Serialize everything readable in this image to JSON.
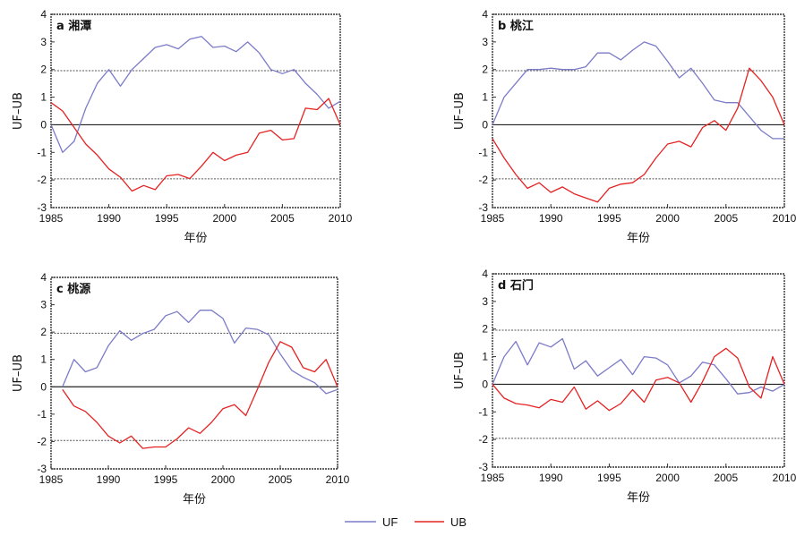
{
  "legend": [
    {
      "name": "UF",
      "color": "#7b7bc8"
    },
    {
      "name": "UB",
      "color": "#e52222"
    }
  ],
  "chart_data": [
    {
      "type": "line",
      "title": "a 湘潭",
      "xlabel": "年份",
      "ylabel": "UF–UB",
      "xlim": [
        1985,
        2010
      ],
      "ylim": [
        -3,
        4
      ],
      "xticks": [
        1985,
        1990,
        1995,
        2000,
        2005,
        2010
      ],
      "yticks": [
        -3,
        -2,
        -1,
        0,
        1,
        2,
        3,
        4
      ],
      "reference_lines": [
        1.96,
        0,
        -1.96
      ],
      "x": [
        1985,
        1986,
        1987,
        1988,
        1989,
        1990,
        1991,
        1992,
        1993,
        1994,
        1995,
        1996,
        1997,
        1998,
        1999,
        2000,
        2001,
        2002,
        2003,
        2004,
        2005,
        2006,
        2007,
        2008,
        2009,
        2010
      ],
      "series": [
        {
          "name": "UF",
          "color": "#7b7bc8",
          "values": [
            0,
            -1.0,
            -0.6,
            0.6,
            1.5,
            2.0,
            1.4,
            2.0,
            2.4,
            2.8,
            2.9,
            2.75,
            3.1,
            3.2,
            2.8,
            2.85,
            2.65,
            3.0,
            2.6,
            2.0,
            1.85,
            2.0,
            1.5,
            1.1,
            0.6,
            0.85
          ]
        },
        {
          "name": "UB",
          "color": "#e52222",
          "values": [
            0.8,
            0.5,
            -0.1,
            -0.7,
            -1.1,
            -1.6,
            -1.9,
            -2.4,
            -2.2,
            -2.35,
            -1.85,
            -1.8,
            -1.95,
            -1.5,
            -1.0,
            -1.3,
            -1.1,
            -1.0,
            -0.3,
            -0.2,
            -0.55,
            -0.5,
            0.6,
            0.55,
            0.95,
            0
          ]
        }
      ]
    },
    {
      "type": "line",
      "title": "b 桃江",
      "xlabel": "年份",
      "ylabel": "UF–UB",
      "xlim": [
        1985,
        2010
      ],
      "ylim": [
        -3,
        4
      ],
      "xticks": [
        1985,
        1990,
        1995,
        2000,
        2005,
        2010
      ],
      "yticks": [
        -3,
        -2,
        -1,
        0,
        1,
        2,
        3,
        4
      ],
      "reference_lines": [
        1.96,
        0,
        -1.96
      ],
      "x": [
        1985,
        1986,
        1987,
        1988,
        1989,
        1990,
        1991,
        1992,
        1993,
        1994,
        1995,
        1996,
        1997,
        1998,
        1999,
        2000,
        2001,
        2002,
        2003,
        2004,
        2005,
        2006,
        2007,
        2008,
        2009,
        2010
      ],
      "series": [
        {
          "name": "UF",
          "color": "#7b7bc8",
          "values": [
            0,
            1.0,
            1.5,
            2.0,
            2.0,
            2.05,
            2.0,
            2.0,
            2.1,
            2.6,
            2.6,
            2.35,
            2.7,
            3.0,
            2.85,
            2.3,
            1.7,
            2.05,
            1.5,
            0.9,
            0.8,
            0.8,
            0.3,
            -0.2,
            -0.5,
            -0.5
          ]
        },
        {
          "name": "UB",
          "color": "#e52222",
          "values": [
            -0.5,
            -1.2,
            -1.8,
            -2.3,
            -2.1,
            -2.45,
            -2.25,
            -2.5,
            -2.65,
            -2.8,
            -2.3,
            -2.15,
            -2.1,
            -1.8,
            -1.2,
            -0.7,
            -0.6,
            -0.8,
            -0.1,
            0.15,
            -0.2,
            0.6,
            2.05,
            1.6,
            1.0,
            0
          ]
        }
      ]
    },
    {
      "type": "line",
      "title": "c 桃源",
      "xlabel": "年份",
      "ylabel": "UF–UB",
      "xlim": [
        1985,
        2010
      ],
      "ylim": [
        -3,
        4
      ],
      "xticks": [
        1985,
        1990,
        1995,
        2000,
        2005,
        2010
      ],
      "yticks": [
        -3,
        -2,
        -1,
        0,
        1,
        2,
        3,
        4
      ],
      "reference_lines": [
        1.96,
        0,
        -1.96
      ],
      "x": [
        1986,
        1987,
        1988,
        1989,
        1990,
        1991,
        1992,
        1993,
        1994,
        1995,
        1996,
        1997,
        1998,
        1999,
        2000,
        2001,
        2002,
        2003,
        2004,
        2005,
        2006,
        2007,
        2008,
        2009,
        2010
      ],
      "series": [
        {
          "name": "UF",
          "color": "#7b7bc8",
          "values": [
            0,
            1.0,
            0.55,
            0.7,
            1.5,
            2.05,
            1.7,
            1.95,
            2.1,
            2.6,
            2.75,
            2.35,
            2.8,
            2.8,
            2.5,
            1.6,
            2.15,
            2.1,
            1.9,
            1.2,
            0.6,
            0.35,
            0.15,
            -0.25,
            -0.1
          ]
        },
        {
          "name": "UB",
          "color": "#e52222",
          "values": [
            -0.1,
            -0.7,
            -0.9,
            -1.3,
            -1.8,
            -2.05,
            -1.8,
            -2.25,
            -2.2,
            -2.2,
            -1.9,
            -1.5,
            -1.7,
            -1.3,
            -0.8,
            -0.65,
            -1.05,
            -0.1,
            0.9,
            1.65,
            1.45,
            0.7,
            0.55,
            1.0,
            0
          ]
        }
      ]
    },
    {
      "type": "line",
      "title": "d 石门",
      "xlabel": "年份",
      "ylabel": "UF–UB",
      "xlim": [
        1985,
        2010
      ],
      "ylim": [
        -3,
        4
      ],
      "xticks": [
        1985,
        1990,
        1995,
        2000,
        2005,
        2010
      ],
      "yticks": [
        -3,
        -2,
        -1,
        0,
        1,
        2,
        3,
        4
      ],
      "reference_lines": [
        1.96,
        0,
        -1.96
      ],
      "x": [
        1985,
        1986,
        1987,
        1988,
        1989,
        1990,
        1991,
        1992,
        1993,
        1994,
        1995,
        1996,
        1997,
        1998,
        1999,
        2000,
        2001,
        2002,
        2003,
        2004,
        2005,
        2006,
        2007,
        2008,
        2009,
        2010
      ],
      "series": [
        {
          "name": "UF",
          "color": "#7b7bc8",
          "values": [
            0,
            1.0,
            1.55,
            0.7,
            1.5,
            1.35,
            1.65,
            0.55,
            0.85,
            0.3,
            0.6,
            0.9,
            0.35,
            1.0,
            0.95,
            0.7,
            0.05,
            0.3,
            0.8,
            0.7,
            0.2,
            -0.35,
            -0.3,
            -0.1,
            -0.25,
            0
          ]
        },
        {
          "name": "UB",
          "color": "#e52222",
          "values": [
            0,
            -0.5,
            -0.7,
            -0.75,
            -0.85,
            -0.55,
            -0.65,
            -0.1,
            -0.9,
            -0.6,
            -0.95,
            -0.7,
            -0.2,
            -0.65,
            0.15,
            0.25,
            0.05,
            -0.65,
            0.1,
            1.0,
            1.3,
            0.95,
            -0.1,
            -0.5,
            1.0,
            0
          ]
        }
      ]
    }
  ]
}
